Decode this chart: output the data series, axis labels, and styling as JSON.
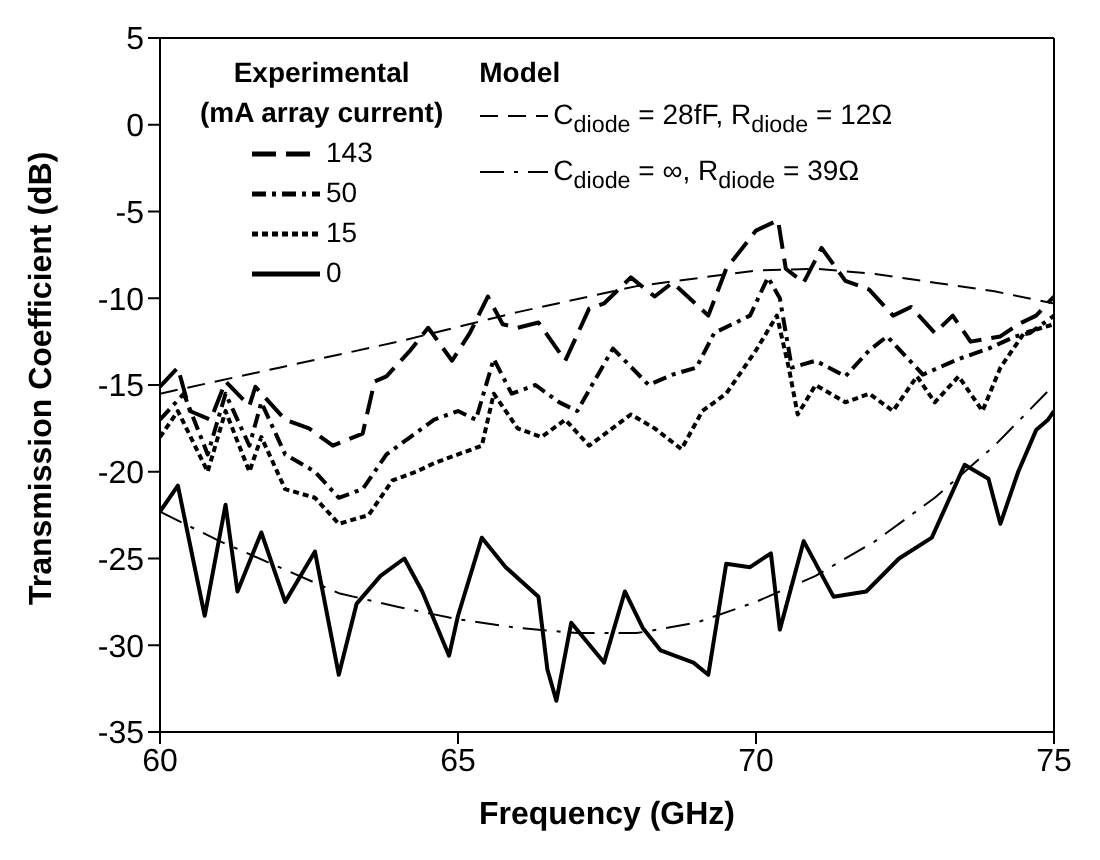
{
  "chart_data": {
    "type": "line",
    "xlabel": "Frequency (GHz)",
    "ylabel": "Transmission Coefficient (dB)",
    "xlim": [
      60,
      75
    ],
    "xticks": [
      60,
      65,
      70,
      75
    ],
    "ylim": [
      -35,
      5
    ],
    "yticks": [
      -35,
      -30,
      -25,
      -20,
      -15,
      -10,
      -5,
      0,
      5
    ],
    "legend": "top",
    "legend_title": "Experimental\n(mA array current)",
    "annotations": [
      "Model"
    ],
    "series": [
      {
        "name": "143",
        "color": "#000000",
        "line_style": "dashed",
        "x": [
          60,
          60.3,
          60.5,
          60.85,
          61.1,
          61.5,
          61.6,
          62.1,
          62.5,
          62.9,
          63.4,
          63.6,
          63.8,
          64.2,
          64.5,
          64.9,
          65.2,
          65.5,
          65.75,
          66.0,
          66.35,
          66.8,
          67.2,
          67.45,
          67.9,
          68.3,
          68.6,
          69.2,
          69.5,
          70.0,
          70.37,
          70.5,
          70.8,
          71.1,
          71.5,
          71.9,
          72.3,
          72.6,
          73.0,
          73.3,
          73.6,
          74.1,
          74.4,
          74.7,
          75
        ],
        "values": [
          -15.1,
          -14,
          -16.5,
          -17,
          -14.8,
          -16.2,
          -15.1,
          -17,
          -17.5,
          -18.5,
          -17.8,
          -14.8,
          -14.5,
          -13,
          -11.7,
          -13.6,
          -12,
          -9.9,
          -11.5,
          -11.7,
          -11.4,
          -13.6,
          -10.6,
          -10.3,
          -8.8,
          -9.9,
          -9.1,
          -11,
          -8.3,
          -6.1,
          -5.5,
          -8.3,
          -9.1,
          -7.1,
          -9,
          -9.5,
          -11,
          -10.5,
          -12,
          -11,
          -12.5,
          -12.2,
          -11.5,
          -11,
          -9.9
        ]
      },
      {
        "name": "50",
        "color": "#000000",
        "line_style": "dashed",
        "x": [
          60,
          60.4,
          60.8,
          61.1,
          61.5,
          61.7,
          62.1,
          62.6,
          63,
          63.4,
          63.8,
          64.2,
          64.6,
          65,
          65.3,
          65.6,
          65.9,
          66.3,
          66.7,
          67,
          67.6,
          68.2,
          68.6,
          69,
          69.3,
          69.9,
          70.2,
          70.4,
          70.6,
          71.0,
          71.5,
          71.9,
          72.2,
          72.8,
          73.4,
          73.9,
          74.35,
          74.6,
          75
        ],
        "values": [
          -17,
          -15.5,
          -19,
          -15.5,
          -18.5,
          -16,
          -19,
          -20,
          -21.5,
          -21,
          -19,
          -18,
          -17,
          -16.5,
          -17,
          -13.5,
          -15.5,
          -15,
          -16,
          -16.5,
          -12.9,
          -15,
          -14.4,
          -14,
          -12,
          -11,
          -8.8,
          -10,
          -14,
          -13.6,
          -14.5,
          -13,
          -12.2,
          -14.4,
          -13.5,
          -12.9,
          -12.2,
          -12,
          -11
        ]
      },
      {
        "name": "15",
        "color": "#000000",
        "line_style": "dotted",
        "x": [
          60,
          60.3,
          60.8,
          61.1,
          61.5,
          61.7,
          62.1,
          62.6,
          63,
          63.5,
          63.9,
          64.3,
          64.6,
          65,
          65.4,
          65.6,
          66,
          66.4,
          66.8,
          67.2,
          67.9,
          68.3,
          68.75,
          69.1,
          69.5,
          70,
          70.35,
          70.55,
          70.7,
          71,
          71.5,
          71.9,
          72.3,
          72.7,
          73,
          73.4,
          73.8,
          74.1,
          74.5,
          75
        ],
        "values": [
          -18,
          -16.5,
          -20,
          -16.5,
          -20,
          -18,
          -21,
          -21.5,
          -23,
          -22.5,
          -20.5,
          -20,
          -19.5,
          -19,
          -18.5,
          -15.5,
          -17.5,
          -18,
          -17,
          -18.5,
          -16.7,
          -17.5,
          -18.7,
          -16.5,
          -15.5,
          -13,
          -11,
          -14,
          -16.7,
          -15,
          -16,
          -15.5,
          -16.5,
          -14.5,
          -16,
          -14.5,
          -16.5,
          -14,
          -12,
          -11.5
        ]
      },
      {
        "name": "0",
        "color": "#000000",
        "x": [
          60,
          60.3,
          60.75,
          61.1,
          61.3,
          61.7,
          62.1,
          62.6,
          63.0,
          63.3,
          63.7,
          64.1,
          64.4,
          64.85,
          65,
          65.4,
          65.8,
          66.35,
          66.5,
          66.65,
          66.9,
          67.45,
          67.8,
          68.1,
          68.4,
          68.95,
          69.2,
          69.5,
          69.9,
          70.25,
          70.4,
          70.8,
          71.3,
          71.85,
          72.4,
          72.95,
          73.5,
          73.9,
          74.1,
          74.4,
          74.7,
          74.9,
          75
        ],
        "values": [
          -22.3,
          -20.8,
          -28.3,
          -21.9,
          -26.9,
          -23.5,
          -27.5,
          -24.6,
          -31.7,
          -27.6,
          -26,
          -25,
          -26.9,
          -30.6,
          -28.3,
          -23.8,
          -25.5,
          -27.2,
          -31.4,
          -33.2,
          -28.7,
          -31,
          -26.9,
          -29,
          -30.3,
          -31,
          -31.7,
          -25.3,
          -25.5,
          -24.7,
          -29.1,
          -24,
          -27.2,
          -26.9,
          -25,
          -23.8,
          -19.6,
          -20.4,
          -23,
          -20,
          -17.6,
          -17,
          -16.5
        ]
      },
      {
        "name": "C$_{diode}$ = 28fF, R$_{diode}$ = 12Ω",
        "color": "#000000",
        "line_style": "dashed",
        "x": [
          60,
          62,
          64,
          66,
          68,
          70,
          71,
          72,
          73,
          74,
          75
        ],
        "values": [
          -15.5,
          -14,
          -12.5,
          -10.8,
          -9.3,
          -8.4,
          -8.3,
          -8.6,
          -9.1,
          -9.6,
          -10.3
        ]
      },
      {
        "name": "C$_{diode}$ = ∞, R$_{diode}$ = 39Ω",
        "color": "#000000",
        "line_style": "dashed",
        "x": [
          60,
          61,
          62,
          63,
          64,
          65,
          66,
          67,
          68,
          69,
          70,
          71,
          72,
          73,
          74,
          75
        ],
        "values": [
          -22.3,
          -24,
          -25.5,
          -27,
          -27.8,
          -28.5,
          -29,
          -29.3,
          -29.3,
          -28.7,
          -27.5,
          -26,
          -24,
          -21.5,
          -18.5,
          -15
        ]
      }
    ]
  }
}
